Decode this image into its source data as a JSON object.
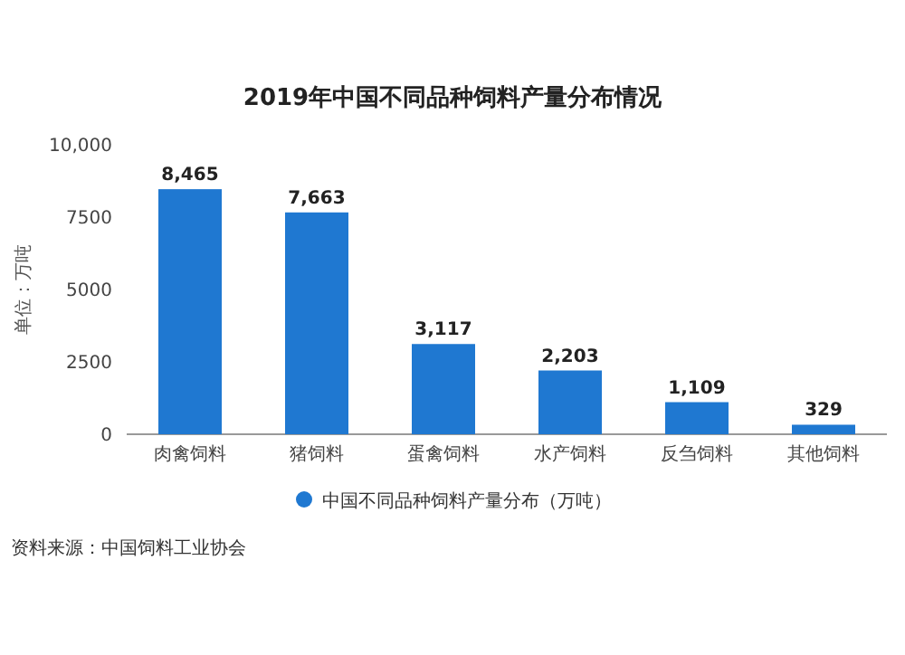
{
  "chart_data": {
    "type": "bar",
    "title": "2019年中国不同品种饲料产量分布情况",
    "ylabel": "单位：万吨",
    "categories": [
      "肉禽饲料",
      "猪饲料",
      "蛋禽饲料",
      "水产饲料",
      "反刍饲料",
      "其他饲料"
    ],
    "series": [
      {
        "name": "中国不同品种饲料产量分布（万吨）",
        "color": "#1f78d1",
        "values": [
          8465,
          7663,
          3117,
          2203,
          1109,
          329
        ],
        "value_labels": [
          "8,465",
          "7,663",
          "3,117",
          "2,203",
          "1,109",
          "329"
        ]
      }
    ],
    "ylim": [
      0,
      10000
    ],
    "yticks": [
      0,
      2500,
      5000,
      7500,
      {
        "value": 10000,
        "label": "10,000"
      }
    ],
    "legend": "bottom",
    "annotations": [
      "资料来源：中国饲料工业协会"
    ]
  }
}
